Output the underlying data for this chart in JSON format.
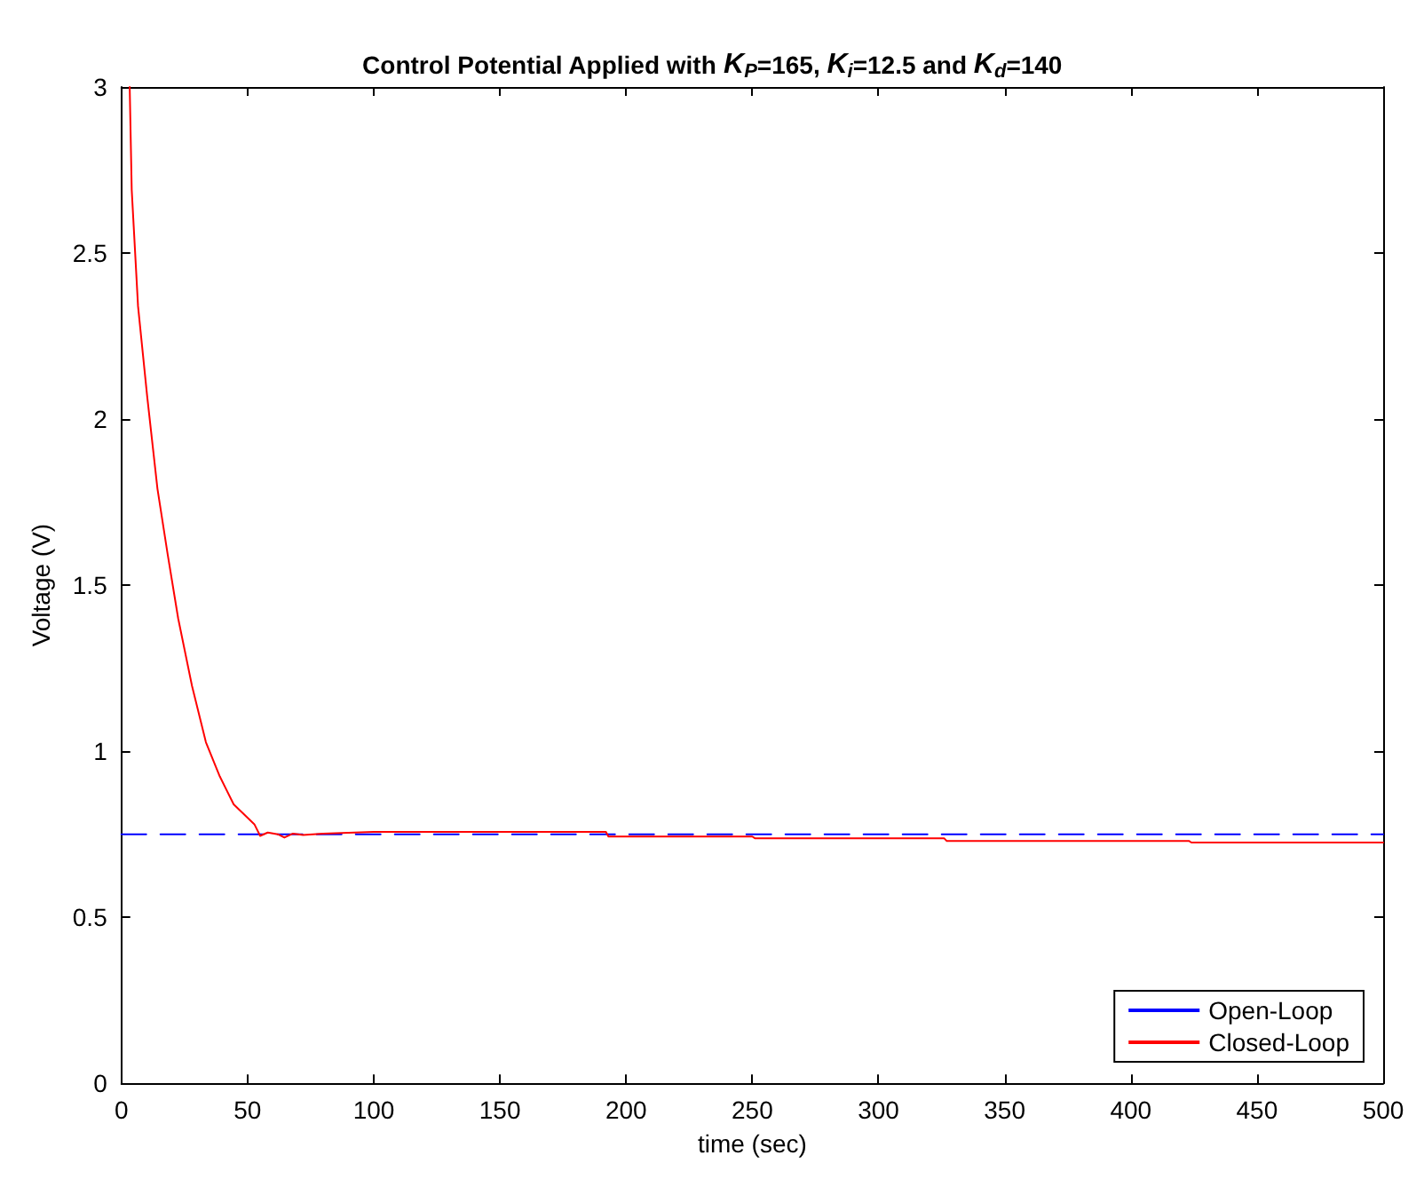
{
  "chart_data": {
    "type": "line",
    "title": "Control Potential Applied with K$_{P}$=165, K$_{i}$=12.5 and K$_{d}$=140",
    "xlabel": "time (sec)",
    "ylabel": "Voltage (V)",
    "xlim": [
      0,
      500
    ],
    "xticks": [
      0,
      50,
      100,
      150,
      200,
      250,
      300,
      350,
      400,
      450,
      500
    ],
    "ylim": [
      0,
      3
    ],
    "yticks": [
      0,
      0.5,
      1,
      1.5,
      2,
      2.5,
      3
    ],
    "grid": false,
    "legend": "bottom right",
    "series": [
      {
        "name": "Open-Loop",
        "color": "#0000ff",
        "line_style": "dashed",
        "x": [
          0,
          500
        ],
        "values": [
          0.75,
          0.75
        ]
      },
      {
        "name": "Closed-Loop",
        "color": "#ff0000",
        "line_style": "solid",
        "x": [
          3.3,
          4.1,
          6.6,
          10.2,
          14.3,
          18.4,
          22.5,
          28,
          33.5,
          39,
          44.5,
          52.7,
          55,
          58,
          62,
          64.6,
          68,
          72,
          80,
          100,
          150,
          192,
          193,
          250,
          251,
          326,
          327,
          423,
          424,
          500
        ],
        "values": [
          3.0,
          2.69,
          2.34,
          2.07,
          1.79,
          1.59,
          1.4,
          1.196,
          1.027,
          0.924,
          0.84,
          0.78,
          0.745,
          0.755,
          0.75,
          0.74,
          0.752,
          0.748,
          0.752,
          0.757,
          0.757,
          0.757,
          0.743,
          0.743,
          0.738,
          0.738,
          0.73,
          0.73,
          0.725,
          0.725
        ]
      }
    ]
  }
}
